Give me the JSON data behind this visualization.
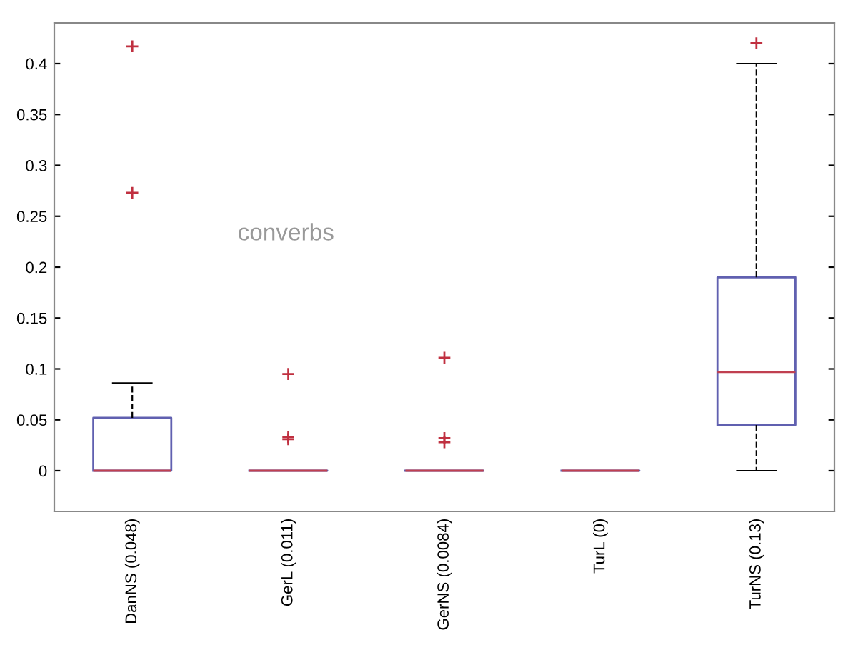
{
  "chart_data": {
    "type": "box",
    "categories": [
      "DanNS (0.048)",
      "GerL (0.011)",
      "GerNS (0.0084)",
      "TurL (0)",
      "TurNS (0.13)"
    ],
    "boxes": [
      {
        "low": 0,
        "q1": 0,
        "median": 0,
        "q3": 0.052,
        "high": 0.086,
        "outliers": [
          0.417,
          0.273
        ]
      },
      {
        "low": 0,
        "q1": 0,
        "median": 0,
        "q3": 0,
        "high": 0,
        "outliers": [
          0.095,
          0.033,
          0.031
        ]
      },
      {
        "low": 0,
        "q1": 0,
        "median": 0,
        "q3": 0,
        "high": 0,
        "outliers": [
          0.111,
          0.032,
          0.028
        ]
      },
      {
        "low": 0,
        "q1": 0,
        "median": 0,
        "q3": 0,
        "high": 0
      },
      {
        "low": 0,
        "q1": 0.045,
        "median": 0.097,
        "q3": 0.19,
        "high": 0.4,
        "outliers": [
          0.42
        ]
      }
    ],
    "color": "#6060b0",
    "ylim": [
      -0.04,
      0.44
    ],
    "yticks": [
      0,
      0.05,
      0.1,
      0.15,
      0.2,
      0.25,
      0.3,
      0.35,
      0.4
    ],
    "grid": false,
    "annotations": [
      "converbs"
    ]
  }
}
